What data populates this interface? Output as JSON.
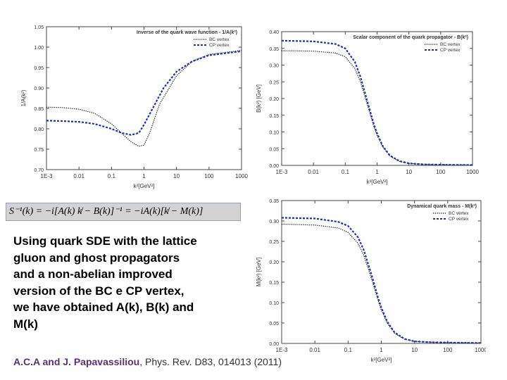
{
  "chart_data": [
    {
      "type": "line",
      "title": "Inverse of the quark wave function - 1/A(k²)",
      "xlabel": "k²[GeV²]",
      "ylabel": "1/A(k²)",
      "xscale": "log",
      "xlim": [
        0.001,
        1000
      ],
      "ylim": [
        0.7,
        1.05
      ],
      "xticks": [
        "1E-3",
        "0.01",
        "0.1",
        "1",
        "10",
        "100",
        "1000"
      ],
      "yticks": [
        "0.70",
        "0.75",
        "0.80",
        "0.85",
        "0.90",
        "0.95",
        "1.00",
        "1.05"
      ],
      "legend_position": "top-right",
      "series": [
        {
          "name": "BC vertex",
          "style": "dotted",
          "color": "#000000",
          "x": [
            0.001,
            0.003,
            0.01,
            0.03,
            0.1,
            0.2,
            0.4,
            0.7,
            1,
            1.5,
            3,
            10,
            30,
            100,
            1000
          ],
          "y": [
            0.853,
            0.852,
            0.848,
            0.838,
            0.812,
            0.79,
            0.768,
            0.757,
            0.76,
            0.79,
            0.86,
            0.93,
            0.965,
            0.982,
            0.992
          ]
        },
        {
          "name": "CP vertex",
          "style": "dashed",
          "color": "#1f2fb0",
          "x": [
            0.001,
            0.003,
            0.01,
            0.03,
            0.1,
            0.2,
            0.4,
            0.7,
            1,
            2,
            4,
            10,
            30,
            100,
            1000
          ],
          "y": [
            0.82,
            0.819,
            0.817,
            0.812,
            0.8,
            0.79,
            0.785,
            0.79,
            0.81,
            0.855,
            0.9,
            0.94,
            0.965,
            0.98,
            0.99
          ]
        }
      ]
    },
    {
      "type": "line",
      "title": "Scalar component of the quark propagator - B(k²)",
      "xlabel": "k²[GeV²]",
      "ylabel": "B(k²) [GeV]",
      "xscale": "log",
      "xlim": [
        0.001,
        1000
      ],
      "ylim": [
        0.0,
        0.4
      ],
      "xticks": [
        "1E-3",
        "0.01",
        "0.1",
        "1",
        "10",
        "100",
        "1000"
      ],
      "yticks": [
        "0.00",
        "0.05",
        "0.10",
        "0.15",
        "0.20",
        "0.25",
        "0.30",
        "0.35",
        "0.40"
      ],
      "legend_position": "top-right",
      "series": [
        {
          "name": "BC vertex",
          "style": "dotted",
          "color": "#000000",
          "x": [
            0.001,
            0.01,
            0.05,
            0.1,
            0.2,
            0.3,
            0.5,
            0.8,
            1,
            1.5,
            2.5,
            5,
            10,
            30,
            100,
            1000
          ],
          "y": [
            0.343,
            0.342,
            0.336,
            0.325,
            0.29,
            0.25,
            0.18,
            0.115,
            0.09,
            0.055,
            0.028,
            0.012,
            0.006,
            0.003,
            0.002,
            0.001
          ]
        },
        {
          "name": "CP vertex",
          "style": "dashed",
          "color": "#1f2fb0",
          "x": [
            0.001,
            0.01,
            0.05,
            0.1,
            0.2,
            0.3,
            0.5,
            0.8,
            1,
            1.5,
            2.5,
            5,
            10,
            30,
            100,
            1000
          ],
          "y": [
            0.373,
            0.371,
            0.363,
            0.35,
            0.31,
            0.265,
            0.19,
            0.122,
            0.096,
            0.058,
            0.03,
            0.013,
            0.006,
            0.003,
            0.002,
            0.001
          ]
        }
      ]
    },
    {
      "type": "line",
      "title": "Dynamical quark mass - M(k²)",
      "xlabel": "k²[GeV²]",
      "ylabel": "M(k²) [GeV]",
      "xscale": "log",
      "xlim": [
        0.001,
        1000
      ],
      "ylim": [
        0.0,
        0.35
      ],
      "xticks": [
        "1E-3",
        "0.01",
        "0.1",
        "1",
        "10",
        "100",
        "1000"
      ],
      "yticks": [
        "0.00",
        "0.05",
        "0.10",
        "0.15",
        "0.20",
        "0.25",
        "0.30",
        "0.35"
      ],
      "legend_position": "top-right",
      "series": [
        {
          "name": "BC vertex",
          "style": "dotted",
          "color": "#000000",
          "x": [
            0.001,
            0.01,
            0.05,
            0.1,
            0.2,
            0.3,
            0.5,
            0.8,
            1,
            1.5,
            2.5,
            5,
            10,
            30,
            100,
            1000
          ],
          "y": [
            0.292,
            0.29,
            0.283,
            0.272,
            0.245,
            0.215,
            0.16,
            0.105,
            0.082,
            0.05,
            0.025,
            0.01,
            0.005,
            0.003,
            0.002,
            0.001
          ]
        },
        {
          "name": "CP vertex",
          "style": "dashed",
          "color": "#1f2fb0",
          "x": [
            0.001,
            0.01,
            0.05,
            0.1,
            0.2,
            0.3,
            0.5,
            0.8,
            1,
            1.5,
            2.5,
            5,
            10,
            30,
            100,
            1000
          ],
          "y": [
            0.308,
            0.306,
            0.298,
            0.288,
            0.26,
            0.228,
            0.17,
            0.112,
            0.088,
            0.054,
            0.027,
            0.011,
            0.005,
            0.003,
            0.002,
            0.001
          ]
        }
      ]
    }
  ],
  "formula": "S⁻¹(k) = −i[A(k) k̸ − B(k)]⁻¹ = −iA(k)[k̸ − M(k)]",
  "description": "Using quark SDE with the lattice gluon and ghost propagators and a non-abelian improved version of the BC e CP vertex, we have obtained  A(k), B(k) and M(k)",
  "citation": {
    "authors": "A.C.A and J. Papavassiliou",
    "separator": ",  ",
    "reference": "Phys. Rev. D83, 014013 (2011)"
  }
}
